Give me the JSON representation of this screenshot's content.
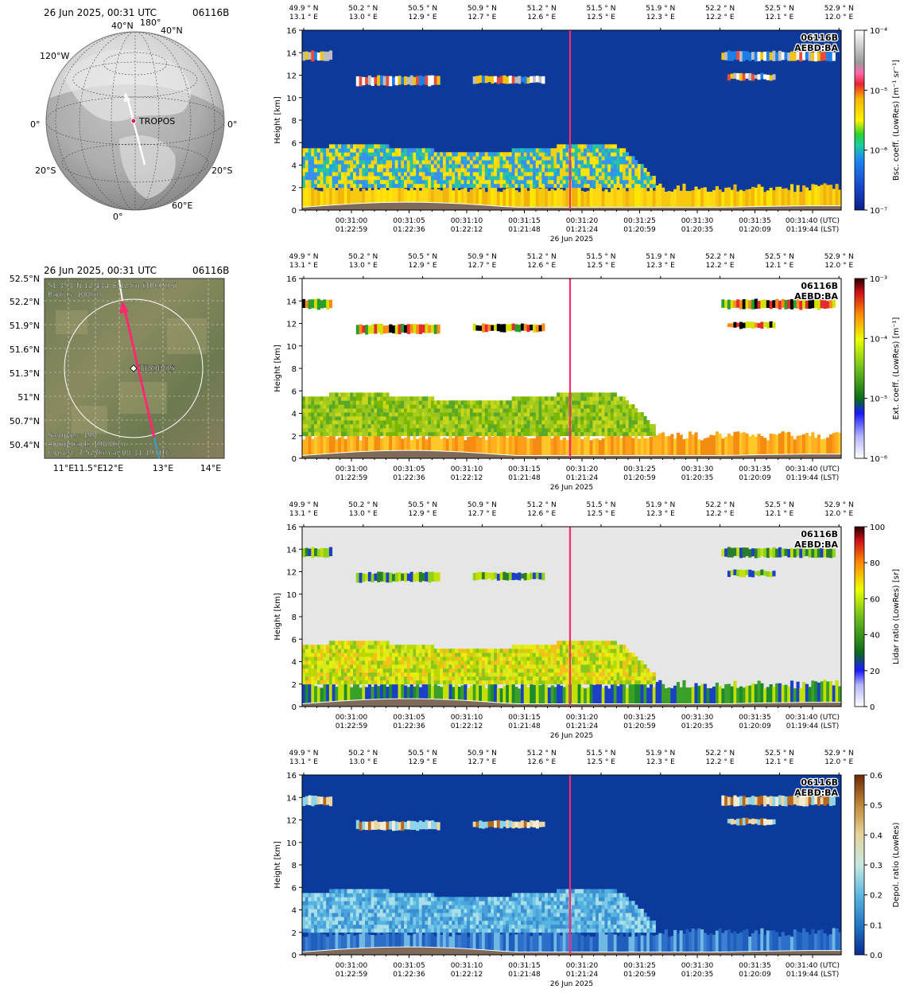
{
  "overview": {
    "title": "26 Jun 2025, 00:31 UTC",
    "frame": "06116B",
    "site_label": "TROPOS",
    "lat_labels": [
      "40°N",
      "40°N",
      "0°",
      "0°",
      "20°S",
      "20°S"
    ],
    "lon_labels": [
      "180°",
      "120°W",
      "0°",
      "60°E"
    ]
  },
  "zoom_map": {
    "title": "26 Jun 2025, 00:31 UTC",
    "frame": "06116B",
    "site_label": "TROPOS",
    "info_top": [
      "51.353°N 12.434°E 125m (TROPOS)",
      "Radius: 100km"
    ],
    "info_bottom": [
      "Samples: 199",
      "Along-track: 198.0km",
      "Closest: 7.527km at 00:31:19 UTC"
    ],
    "y_ticks": [
      "52.5°N",
      "52.2°N",
      "51.9°N",
      "51.6°N",
      "51.3°N",
      "51°N",
      "50.7°N",
      "50.4°N"
    ],
    "x_ticks": [
      "11°E",
      "11.5°E",
      "12°E",
      "13°E",
      "14°E"
    ]
  },
  "chart_data": [
    {
      "type": "heatmap",
      "panel": "backscatter",
      "ylabel": "Height [km]",
      "ylim": [
        0,
        16
      ],
      "y_ticks": [
        0,
        2,
        4,
        6,
        8,
        10,
        12,
        14,
        16
      ],
      "x_times": [
        "00:31:00",
        "00:31:05",
        "00:31:10",
        "00:31:15",
        "00:31:20",
        "00:31:25",
        "00:31:30",
        "00:31:35",
        "00:31:40 (UTC)"
      ],
      "x_lst": [
        "01:22:59",
        "01:22:36",
        "01:22:12",
        "01:21:48",
        "01:21:24",
        "01:20:59",
        "01:20:35",
        "01:20:09",
        "01:19:44 (LST)"
      ],
      "date_label": "26 Jun 2025",
      "top_lat": [
        "49.9 ° N",
        "50.2 ° N",
        "50.5 ° N",
        "50.9 ° N",
        "51.2 ° N",
        "51.5 ° N",
        "51.9 ° N",
        "52.2 ° N",
        "52.5 ° N",
        "52.9 ° N"
      ],
      "top_lon": [
        "13.1 ° E",
        "13.0 ° E",
        "12.9 ° E",
        "12.7 ° E",
        "12.6 ° E",
        "12.5 ° E",
        "12.3 ° E",
        "12.2 ° E",
        "12.1 ° E",
        "12.0 ° E"
      ],
      "frame_label": "06116B",
      "product_label": "AEBD:BA",
      "colorbar_label": "Bsc. coeff. (LowRes) [m⁻¹ sr⁻¹]",
      "colorbar_ticks": [
        "10⁻⁴",
        "10⁻⁵",
        "10⁻⁶",
        "10⁻⁷"
      ],
      "marker_time": "00:31:19"
    },
    {
      "type": "heatmap",
      "panel": "extinction",
      "ylabel": "Height [km]",
      "ylim": [
        0,
        16
      ],
      "y_ticks": [
        0,
        2,
        4,
        6,
        8,
        10,
        12,
        14,
        16
      ],
      "x_times": [
        "00:31:00",
        "00:31:05",
        "00:31:10",
        "00:31:15",
        "00:31:20",
        "00:31:25",
        "00:31:30",
        "00:31:35",
        "00:31:40 (UTC)"
      ],
      "x_lst": [
        "01:22:59",
        "01:22:36",
        "01:22:12",
        "01:21:48",
        "01:21:24",
        "01:20:59",
        "01:20:35",
        "01:20:09",
        "01:19:44 (LST)"
      ],
      "date_label": "26 Jun 2025",
      "top_lat": [
        "49.9 ° N",
        "50.2 ° N",
        "50.5 ° N",
        "50.9 ° N",
        "51.2 ° N",
        "51.5 ° N",
        "51.9 ° N",
        "52.2 ° N",
        "52.5 ° N",
        "52.9 ° N"
      ],
      "top_lon": [
        "13.1 ° E",
        "13.0 ° E",
        "12.9 ° E",
        "12.7 ° E",
        "12.6 ° E",
        "12.5 ° E",
        "12.3 ° E",
        "12.2 ° E",
        "12.1 ° E",
        "12.0 ° E"
      ],
      "frame_label": "06116B",
      "product_label": "AEBD:BA",
      "colorbar_label": "Ext. coeff. (LowRes) [m⁻¹]",
      "colorbar_ticks": [
        "10⁻³",
        "10⁻⁴",
        "10⁻⁵",
        "10⁻⁶"
      ],
      "marker_time": "00:31:19"
    },
    {
      "type": "heatmap",
      "panel": "lidar-ratio",
      "ylabel": "Height [km]",
      "ylim": [
        0,
        16
      ],
      "y_ticks": [
        0,
        2,
        4,
        6,
        8,
        10,
        12,
        14,
        16
      ],
      "x_times": [
        "00:31:00",
        "00:31:05",
        "00:31:10",
        "00:31:15",
        "00:31:20",
        "00:31:25",
        "00:31:30",
        "00:31:35",
        "00:31:40 (UTC)"
      ],
      "x_lst": [
        "01:22:59",
        "01:22:36",
        "01:22:12",
        "01:21:48",
        "01:21:24",
        "01:20:59",
        "01:20:35",
        "01:20:09",
        "01:19:44 (LST)"
      ],
      "date_label": "26 Jun 2025",
      "top_lat": [
        "49.9 ° N",
        "50.2 ° N",
        "50.5 ° N",
        "50.9 ° N",
        "51.2 ° N",
        "51.5 ° N",
        "51.9 ° N",
        "52.2 ° N",
        "52.5 ° N",
        "52.9 ° N"
      ],
      "top_lon": [
        "13.1 ° E",
        "13.0 ° E",
        "12.9 ° E",
        "12.7 ° E",
        "12.6 ° E",
        "12.5 ° E",
        "12.3 ° E",
        "12.2 ° E",
        "12.1 ° E",
        "12.0 ° E"
      ],
      "frame_label": "06116B",
      "product_label": "AEBD:BA",
      "colorbar_label": "Lidar ratio (LowRes) [sr]",
      "colorbar_ticks": [
        "100",
        "80",
        "60",
        "40",
        "20",
        "0"
      ],
      "marker_time": "00:31:19"
    },
    {
      "type": "heatmap",
      "panel": "depolarization",
      "ylabel": "Height [km]",
      "ylim": [
        0,
        16
      ],
      "y_ticks": [
        0,
        2,
        4,
        6,
        8,
        10,
        12,
        14,
        16
      ],
      "x_times": [
        "00:31:00",
        "00:31:05",
        "00:31:10",
        "00:31:15",
        "00:31:20",
        "00:31:25",
        "00:31:30",
        "00:31:35",
        "00:31:40 (UTC)"
      ],
      "x_lst": [
        "01:22:59",
        "01:22:36",
        "01:22:12",
        "01:21:48",
        "01:21:24",
        "01:20:59",
        "01:20:35",
        "01:20:09",
        "01:19:44 (LST)"
      ],
      "date_label": "26 Jun 2025",
      "top_lat": [
        "49.9 ° N",
        "50.2 ° N",
        "50.5 ° N",
        "50.9 ° N",
        "51.2 ° N",
        "51.5 ° N",
        "51.9 ° N",
        "52.2 ° N",
        "52.5 ° N",
        "52.9 ° N"
      ],
      "top_lon": [
        "13.1 ° E",
        "13.0 ° E",
        "12.9 ° E",
        "12.7 ° E",
        "12.6 ° E",
        "12.5 ° E",
        "12.3 ° E",
        "12.2 ° E",
        "12.1 ° E",
        "12.0 ° E"
      ],
      "frame_label": "06116B",
      "product_label": "AEBD:BA",
      "colorbar_label": "Depol. ratio (LowRes)",
      "colorbar_ticks": [
        "0.6",
        "0.5",
        "0.4",
        "0.3",
        "0.2",
        "0.1",
        "0.0"
      ],
      "marker_time": "00:31:19"
    }
  ],
  "colors": {
    "track": "#ff2a6d",
    "background_dark_blue": "#0d3a9a",
    "ground": "#7e6a5a",
    "no_data_grey": "#e6e6e6"
  }
}
